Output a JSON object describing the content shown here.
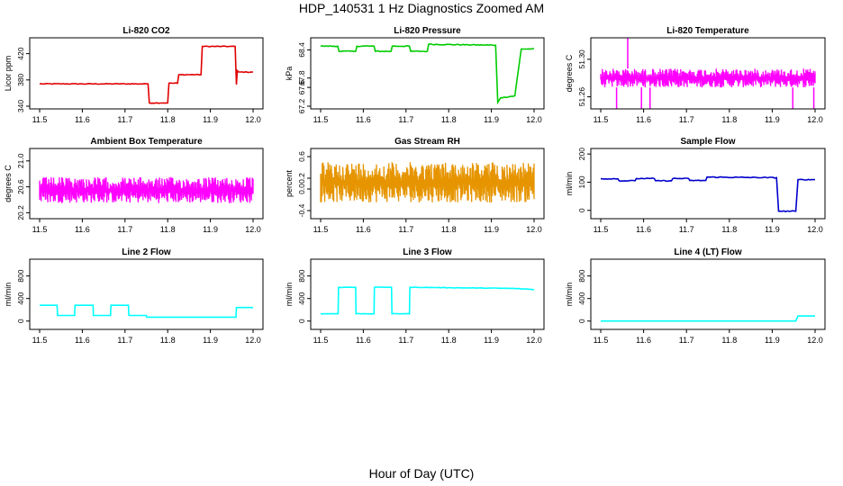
{
  "title": "HDP_140531  1 Hz Diagnostics Zoomed AM",
  "x_axis_label": "Hour of Day (UTC)",
  "chart_data": [
    {
      "type": "line",
      "title": "Li-820 CO2",
      "ylabel": "Licor ppm",
      "color": "#e00000",
      "xlim": [
        11.5,
        12.0
      ],
      "ylim": [
        340,
        440
      ],
      "x_ticks": [
        "11.5",
        "11.6",
        "11.7",
        "11.8",
        "11.9",
        "12.0"
      ],
      "y_ticks": [
        "340",
        "380",
        "420"
      ],
      "y_tick_values": [
        340,
        380,
        420
      ],
      "x": [
        11.5,
        11.754,
        11.757,
        11.8,
        11.803,
        11.823,
        11.826,
        11.878,
        11.881,
        11.958,
        11.961,
        11.963,
        11.966,
        12.0
      ],
      "y": [
        374,
        374,
        345,
        345,
        375,
        375,
        388,
        388,
        431,
        431,
        373,
        394,
        392,
        392
      ],
      "noise": 0.6
    },
    {
      "type": "line",
      "title": "Li-820 Pressure",
      "ylabel": "kPa",
      "color": "#00cc00",
      "xlim": [
        11.5,
        12.0
      ],
      "ylim": [
        67.2,
        68.6
      ],
      "x_ticks": [
        "11.5",
        "11.6",
        "11.7",
        "11.8",
        "11.9",
        "12.0"
      ],
      "y_ticks": [
        "67.2",
        "67.6",
        "67.8",
        "68.4"
      ],
      "y_tick_values": [
        67.2,
        67.6,
        67.8,
        68.4
      ],
      "x": [
        11.5,
        11.54,
        11.543,
        11.582,
        11.585,
        11.625,
        11.628,
        11.665,
        11.668,
        11.708,
        11.711,
        11.75,
        11.753,
        11.91,
        11.915,
        11.922,
        11.955,
        11.97,
        12.0
      ],
      "y": [
        68.48,
        68.48,
        68.37,
        68.37,
        68.48,
        68.48,
        68.37,
        68.37,
        68.48,
        68.48,
        68.37,
        68.37,
        68.52,
        68.5,
        67.28,
        67.38,
        67.42,
        68.42,
        68.42
      ],
      "noise": 0.01
    },
    {
      "type": "line",
      "title": "Li-820 Temperature",
      "ylabel": "degrees C",
      "color": "#ff00ff",
      "xlim": [
        11.5,
        12.0
      ],
      "ylim": [
        51.25,
        51.32
      ],
      "x_ticks": [
        "11.5",
        "11.6",
        "11.7",
        "11.8",
        "11.9",
        "12.0"
      ],
      "y_ticks": [
        "51.26",
        "51.30"
      ],
      "y_tick_values": [
        51.26,
        51.3
      ],
      "band": [
        51.27,
        51.29
      ],
      "spikes_up": [
        11.563
      ],
      "spikes_down": [
        11.537,
        11.595,
        11.615,
        11.948,
        11.997
      ],
      "x": [
        11.5,
        12.0
      ],
      "y": [
        51.28,
        51.28
      ]
    },
    {
      "type": "line",
      "title": "Ambient Box Temperature",
      "ylabel": "degrees C",
      "color": "#ff00ff",
      "xlim": [
        11.5,
        12.0
      ],
      "ylim": [
        20.15,
        21.15
      ],
      "x_ticks": [
        "11.5",
        "11.6",
        "11.7",
        "11.8",
        "11.9",
        "12.0"
      ],
      "y_ticks": [
        "20.2",
        "20.6",
        "21.0"
      ],
      "y_tick_values": [
        20.2,
        20.6,
        21.0
      ],
      "band": [
        20.35,
        20.75
      ],
      "x": [
        11.5,
        12.0
      ],
      "y": [
        20.55,
        20.55
      ]
    },
    {
      "type": "line",
      "title": "Gas Stream RH",
      "ylabel": "percent",
      "color": "#e69500",
      "xlim": [
        11.5,
        12.0
      ],
      "ylim": [
        -0.5,
        0.7
      ],
      "x_ticks": [
        "11.5",
        "11.6",
        "11.7",
        "11.8",
        "11.9",
        "12.0"
      ],
      "y_ticks": [
        "-0.4",
        "0.0",
        "0.2",
        "0.6"
      ],
      "y_tick_values": [
        -0.4,
        0.0,
        0.2,
        0.6
      ],
      "band": [
        -0.25,
        0.5
      ],
      "x": [
        11.5,
        12.0
      ],
      "y": [
        0.1,
        0.1
      ]
    },
    {
      "type": "line",
      "title": "Sample Flow",
      "ylabel": "ml/min",
      "color": "#0000cc",
      "xlim": [
        11.5,
        12.0
      ],
      "ylim": [
        -20,
        210
      ],
      "x_ticks": [
        "11.5",
        "11.6",
        "11.7",
        "11.8",
        "11.9",
        "12.0"
      ],
      "y_ticks": [
        "0",
        "100",
        "200"
      ],
      "y_tick_values": [
        0,
        100,
        200
      ],
      "x": [
        11.5,
        11.54,
        11.543,
        11.58,
        11.583,
        11.625,
        11.628,
        11.665,
        11.668,
        11.705,
        11.708,
        11.745,
        11.748,
        11.91,
        11.915,
        11.955,
        11.96,
        12.0
      ],
      "y": [
        112,
        112,
        105,
        105,
        113,
        113,
        105,
        105,
        113,
        113,
        106,
        106,
        118,
        116,
        -3,
        -3,
        109,
        109
      ],
      "noise": 1.5
    },
    {
      "type": "line",
      "title": "Line 2 Flow",
      "ylabel": "ml/min",
      "color": "#00ffff",
      "xlim": [
        11.5,
        12.0
      ],
      "ylim": [
        -100,
        1050
      ],
      "x_ticks": [
        "11.5",
        "11.6",
        "11.7",
        "11.8",
        "11.9",
        "12.0"
      ],
      "y_ticks": [
        "0",
        "400",
        "800"
      ],
      "y_tick_values": [
        0,
        400,
        800
      ],
      "x": [
        11.5,
        11.541,
        11.542,
        11.582,
        11.583,
        11.625,
        11.626,
        11.666,
        11.667,
        11.708,
        11.709,
        11.75,
        11.751,
        11.96,
        11.961,
        12.0
      ],
      "y": [
        280,
        280,
        100,
        100,
        280,
        280,
        100,
        100,
        280,
        280,
        100,
        100,
        70,
        70,
        240,
        240
      ]
    },
    {
      "type": "line",
      "title": "Line 3 Flow",
      "ylabel": "ml/min",
      "color": "#00ffff",
      "xlim": [
        11.5,
        12.0
      ],
      "ylim": [
        -100,
        1050
      ],
      "x_ticks": [
        "11.5",
        "11.6",
        "11.7",
        "11.8",
        "11.9",
        "12.0"
      ],
      "y_ticks": [
        "0",
        "400",
        "800"
      ],
      "y_tick_values": [
        0,
        400,
        800
      ],
      "x": [
        11.5,
        11.541,
        11.542,
        11.582,
        11.583,
        11.625,
        11.626,
        11.666,
        11.667,
        11.708,
        11.709,
        11.95,
        12.0
      ],
      "y": [
        130,
        130,
        600,
        600,
        130,
        130,
        600,
        600,
        130,
        130,
        600,
        580,
        560
      ],
      "noise": 4
    },
    {
      "type": "line",
      "title": "Line 4 (LT) Flow",
      "ylabel": "ml/min",
      "color": "#00ffff",
      "xlim": [
        11.5,
        12.0
      ],
      "ylim": [
        -100,
        1050
      ],
      "x_ticks": [
        "11.5",
        "11.6",
        "11.7",
        "11.8",
        "11.9",
        "12.0"
      ],
      "y_ticks": [
        "0",
        "400",
        "800"
      ],
      "y_tick_values": [
        0,
        400,
        800
      ],
      "x": [
        11.5,
        11.955,
        11.96,
        12.0
      ],
      "y": [
        0,
        0,
        90,
        90
      ]
    }
  ]
}
